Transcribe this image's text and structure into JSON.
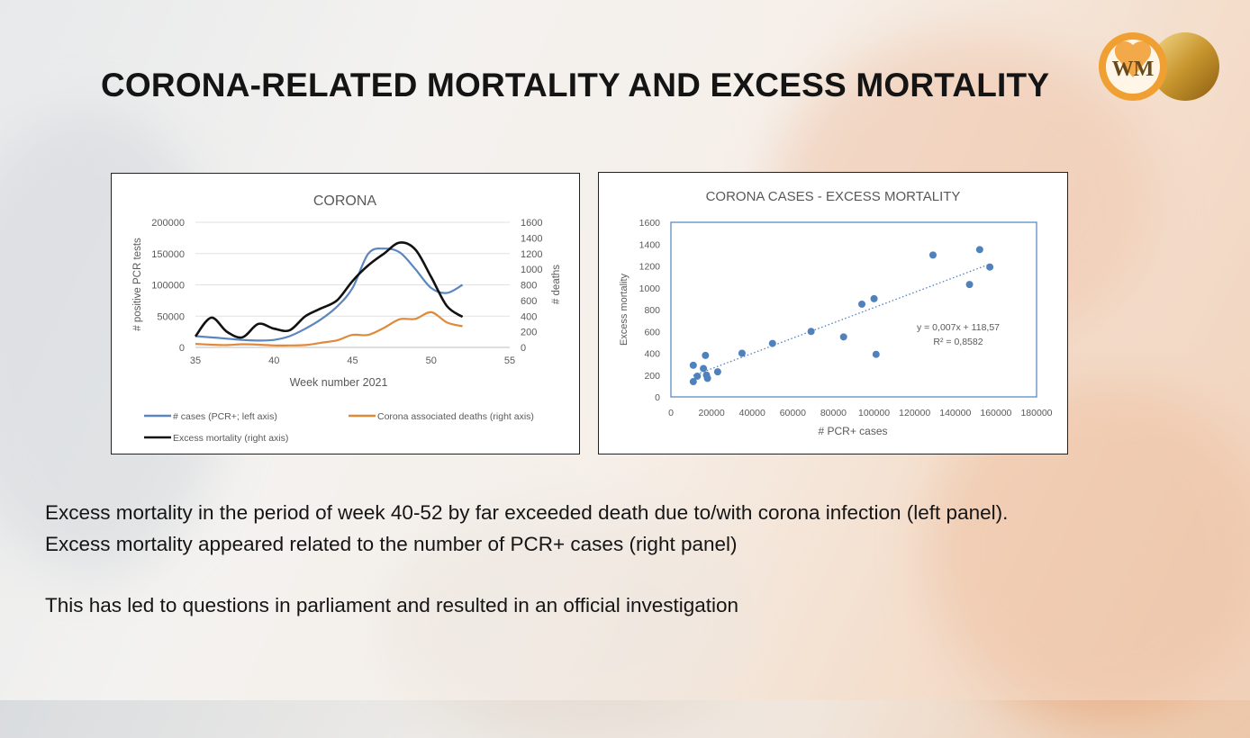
{
  "slide": {
    "title": "CORONA-RELATED MORTALITY AND EXCESS MORTALITY",
    "body_lines": [
      "Excess mortality in the period of week 40-52 by far exceeded death due to/with corona  infection (left panel).",
      "Excess mortality appeared related to the number of PCR+ cases (right panel)",
      "This has led to questions in parliament and resulted in an official investigation"
    ],
    "logo_text": "WM"
  },
  "chart_data": [
    {
      "type": "line",
      "title": "CORONA",
      "xlabel": "Week number 2021",
      "ylabel_left": "# positive PCR tests",
      "ylabel_right": "# deaths",
      "xlim": [
        35,
        55
      ],
      "ylim_left": [
        0,
        200000
      ],
      "ylim_right": [
        0,
        1600
      ],
      "x_ticks": [
        35,
        40,
        45,
        50,
        55
      ],
      "y_ticks_left": [
        "200000",
        "150000",
        "100000",
        "50000",
        "0"
      ],
      "y_ticks_right": [
        "1600",
        "1400",
        "1200",
        "1000",
        "800",
        "600",
        "400",
        "200",
        "0"
      ],
      "legend_position": "bottom",
      "series": [
        {
          "name": "# cases (PCR+; left axis)",
          "axis": "left",
          "color": "#5b86c0",
          "x": [
            35,
            36,
            37,
            38,
            39,
            40,
            41,
            42,
            43,
            44,
            45,
            46,
            47,
            48,
            49,
            50,
            51,
            52
          ],
          "y": [
            18000,
            16000,
            14000,
            12000,
            11000,
            12000,
            18000,
            30000,
            45000,
            65000,
            95000,
            150000,
            158000,
            152000,
            125000,
            95000,
            87000,
            100000
          ]
        },
        {
          "name": "Corona associated deaths (right axis)",
          "axis": "right",
          "color": "#e0893a",
          "x": [
            35,
            36,
            37,
            38,
            39,
            40,
            41,
            42,
            43,
            44,
            45,
            46,
            47,
            48,
            49,
            50,
            51,
            52
          ],
          "y": [
            45,
            35,
            30,
            40,
            35,
            25,
            25,
            30,
            60,
            90,
            160,
            160,
            250,
            360,
            365,
            450,
            320,
            270
          ]
        },
        {
          "name": "Excess mortality (right axis)",
          "axis": "right",
          "color": "#111111",
          "x": [
            35,
            36,
            37,
            38,
            39,
            40,
            41,
            42,
            43,
            44,
            45,
            46,
            47,
            48,
            49,
            50,
            51,
            52
          ],
          "y": [
            140,
            380,
            200,
            130,
            300,
            240,
            220,
            400,
            500,
            600,
            850,
            1050,
            1200,
            1340,
            1250,
            900,
            530,
            390
          ]
        }
      ]
    },
    {
      "type": "scatter",
      "title": "CORONA CASES - EXCESS MORTALITY",
      "xlabel": "# PCR+ cases",
      "ylabel": "Excess mortality",
      "xlim": [
        0,
        180000
      ],
      "ylim": [
        0,
        1600
      ],
      "x_ticks": [
        "0",
        "20000",
        "40000",
        "60000",
        "80000",
        "100000",
        "120000",
        "140000",
        "160000",
        "180000"
      ],
      "y_ticks": [
        "1600",
        "1400",
        "1200",
        "1000",
        "800",
        "600",
        "400",
        "200",
        "0"
      ],
      "point_color": "#4f81bd",
      "points": [
        {
          "x": 11000,
          "y": 140
        },
        {
          "x": 11000,
          "y": 290
        },
        {
          "x": 13000,
          "y": 190
        },
        {
          "x": 16000,
          "y": 260
        },
        {
          "x": 17000,
          "y": 380
        },
        {
          "x": 17500,
          "y": 200
        },
        {
          "x": 18000,
          "y": 170
        },
        {
          "x": 23000,
          "y": 230
        },
        {
          "x": 35000,
          "y": 400
        },
        {
          "x": 50000,
          "y": 490
        },
        {
          "x": 69000,
          "y": 600
        },
        {
          "x": 85000,
          "y": 550
        },
        {
          "x": 94000,
          "y": 850
        },
        {
          "x": 100000,
          "y": 900
        },
        {
          "x": 101000,
          "y": 390
        },
        {
          "x": 129000,
          "y": 1300
        },
        {
          "x": 147000,
          "y": 1030
        },
        {
          "x": 152000,
          "y": 1350
        },
        {
          "x": 157000,
          "y": 1190
        }
      ],
      "trendline": {
        "type": "linear",
        "slope": 0.007,
        "intercept": 118.57,
        "equation": "y = 0,007x + 118,57",
        "r_squared": "R² = 0,8582"
      }
    }
  ]
}
